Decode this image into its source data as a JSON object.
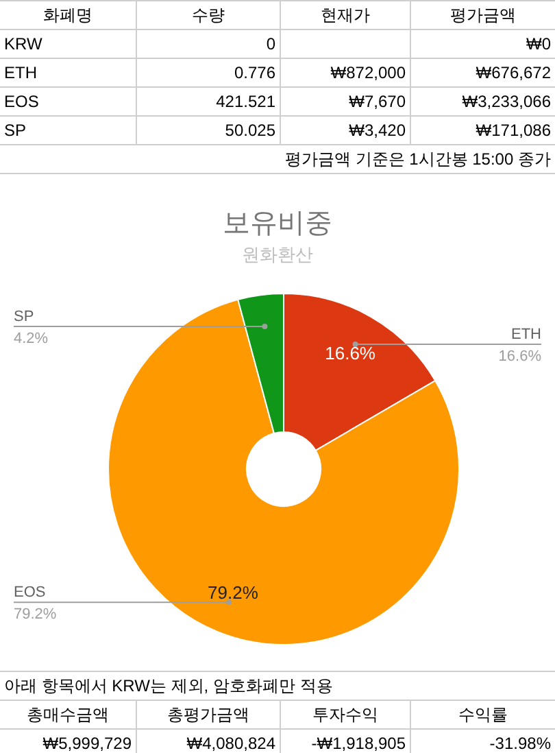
{
  "chart_data": {
    "type": "donut",
    "title": "보유비중",
    "subtitle": "원화환산",
    "categories": [
      "ETH",
      "EOS",
      "SP"
    ],
    "values": [
      16.6,
      79.2,
      4.2
    ],
    "colors": [
      "#dc3912",
      "#ff9900",
      "#109618"
    ],
    "value_labels": [
      "16.6%",
      "79.2%",
      null
    ],
    "annotations": [
      "화폐명",
      "수량",
      "현재가",
      "평가금액",
      "KRW",
      "0",
      "₩0",
      "ETH",
      "0.776",
      "₩872,000",
      "₩676,672",
      "EOS",
      "421.521",
      "₩7,670",
      "₩3,233,066",
      "SP",
      "50.025",
      "₩3,420",
      "₩171,086",
      "평가금액 기준은 1시간봉 15:00 종가",
      "아래 항목에서 KRW는 제외, 암호화폐만 적용",
      "총매수금액",
      "총평가금액",
      "투자수익",
      "수익률",
      "₩5,999,729",
      "₩4,080,824",
      "-₩1,918,905",
      "-31.98%",
      {
        "text": "16.6%",
        "x": "ETH"
      },
      {
        "text": "79.2%",
        "x": "EOS"
      },
      {
        "text": "4.2%",
        "x": "SP"
      }
    ]
  }
}
